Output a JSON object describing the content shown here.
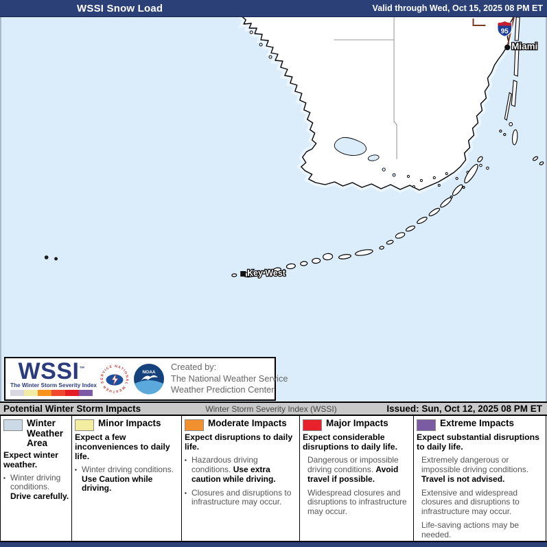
{
  "header": {
    "title": "WSSI Snow Load",
    "valid": "Valid through Wed, Oct 15, 2025 08 PM ET"
  },
  "map": {
    "city_miami": "Miami",
    "city_key_west": "Key West",
    "interstate_95": "95",
    "water_color": "#dbecfb",
    "land_color": "#ffffff"
  },
  "logo_box": {
    "wssi": "WSSI",
    "trademark": "™",
    "tagline": "The Winter Storm Severity Index",
    "nws_ring_text": "NATIONAL WEATHER SERVICE",
    "noaa_text": "NOAA",
    "created_by_line1": "Created by:",
    "created_by_line2": "The National Weather Service",
    "created_by_line3": "Weather Prediction Center",
    "severity_colors": [
      "#d8d7e2",
      "#f1eba3",
      "#f7941e",
      "#f0482f",
      "#e51e25",
      "#7c5aa5"
    ]
  },
  "legend_header": {
    "left": "Potential Winter Storm Impacts",
    "center": "Winter Storm Severity Index (WSSI)",
    "right": "Issued: Sun, Oct 12, 2025 08 PM ET"
  },
  "legend": {
    "columns": [
      {
        "title": "Winter Weather Area",
        "swatch": "#ccd9e6",
        "intro": "Expect winter weather.",
        "items": [
          {
            "bullet": true,
            "runs": [
              {
                "t": "Winter driving conditions. ",
                "s": "g"
              },
              {
                "t": "Drive carefully.",
                "s": "b"
              }
            ]
          }
        ]
      },
      {
        "title": "Minor Impacts",
        "swatch": "#f3eda1",
        "intro": "Expect a few inconveniences to daily life.",
        "items": [
          {
            "bullet": true,
            "runs": [
              {
                "t": "Winter driving conditions. ",
                "s": "g"
              },
              {
                "t": "Use Caution while driving.",
                "s": "b"
              }
            ]
          }
        ]
      },
      {
        "title": "Moderate Impacts",
        "swatch": "#f0902e",
        "intro": "Expect disruptions to daily life.",
        "items": [
          {
            "bullet": true,
            "runs": [
              {
                "t": "Hazardous driving conditions. ",
                "s": "g"
              },
              {
                "t": "Use extra caution while driving.",
                "s": "b"
              }
            ]
          },
          {
            "bullet": true,
            "runs": [
              {
                "t": "Closures and disruptions to infrastructure may occur.",
                "s": "g"
              }
            ]
          }
        ]
      },
      {
        "title": "Major Impacts",
        "swatch": "#e8222c",
        "intro": "Expect considerable disruptions to daily life.",
        "items": [
          {
            "bullet": false,
            "runs": [
              {
                "t": "Dangerous or impossible driving conditions. ",
                "s": "g"
              },
              {
                "t": "Avoid travel if possible.",
                "s": "b"
              }
            ]
          },
          {
            "bullet": false,
            "runs": [
              {
                "t": "Widespread closures and disruptions to infrastructure may occur.",
                "s": "g"
              }
            ]
          }
        ]
      },
      {
        "title": "Extreme Impacts",
        "swatch": "#7b5ba1",
        "intro": "Expect substantial disruptions to daily life.",
        "items": [
          {
            "bullet": false,
            "runs": [
              {
                "t": "Extremely dangerous or impossible driving conditions. ",
                "s": "g"
              },
              {
                "t": "Travel is not advised.",
                "s": "b"
              }
            ]
          },
          {
            "bullet": false,
            "runs": [
              {
                "t": "Extensive and widespread closures and disruptions to infrastructure may occur.",
                "s": "g"
              }
            ]
          },
          {
            "bullet": false,
            "runs": [
              {
                "t": "Life-saving actions may be needed.",
                "s": "g"
              }
            ]
          }
        ]
      }
    ]
  }
}
